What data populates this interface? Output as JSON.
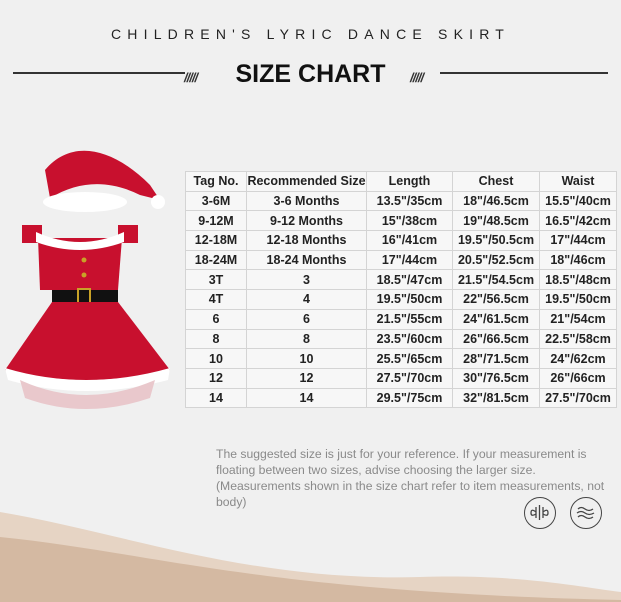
{
  "header": {
    "subtitle": "CHILDREN'S LYRIC DANCE SKIRT",
    "title": "SIZE CHART"
  },
  "table": {
    "columns": [
      "Tag No.",
      "Recommended Size",
      "Length",
      "Chest",
      "Waist"
    ],
    "rows": [
      [
        "3-6M",
        "3-6 Months",
        "13.5\"/35cm",
        "18\"/46.5cm",
        "15.5\"/40cm"
      ],
      [
        "9-12M",
        "9-12 Months",
        "15\"/38cm",
        "19\"/48.5cm",
        "16.5\"/42cm"
      ],
      [
        "12-18M",
        "12-18 Months",
        "16\"/41cm",
        "19.5\"/50.5cm",
        "17\"/44cm"
      ],
      [
        "18-24M",
        "18-24 Months",
        "17\"/44cm",
        "20.5\"/52.5cm",
        "18\"/46cm"
      ],
      [
        "3T",
        "3",
        "18.5\"/47cm",
        "21.5\"/54.5cm",
        "18.5\"/48cm"
      ],
      [
        "4T",
        "4",
        "19.5\"/50cm",
        "22\"/56.5cm",
        "19.5\"/50cm"
      ],
      [
        "6",
        "6",
        "21.5\"/55cm",
        "24\"/61.5cm",
        "21\"/54cm"
      ],
      [
        "8",
        "8",
        "23.5\"/60cm",
        "26\"/66.5cm",
        "22.5\"/58cm"
      ],
      [
        "10",
        "10",
        "25.5\"/65cm",
        "28\"/71.5cm",
        "24\"/62cm"
      ],
      [
        "12",
        "12",
        "27.5\"/70cm",
        "30\"/76.5cm",
        "26\"/66cm"
      ],
      [
        "14",
        "14",
        "29.5\"/75cm",
        "32\"/81.5cm",
        "27.5\"/70cm"
      ]
    ]
  },
  "note": "The suggested size is just for your reference. If your measurement is floating between two sizes, advise choosing the larger size. (Measurements shown in the size chart refer to item measurements, not body)",
  "icons": [
    "stretch-fabric-icon",
    "soft-fabric-icon"
  ],
  "colors": {
    "dress_red": "#c8102e",
    "fur_white": "#ffffff",
    "background": "#f0f0f0",
    "wave": "#d9c2ad"
  }
}
